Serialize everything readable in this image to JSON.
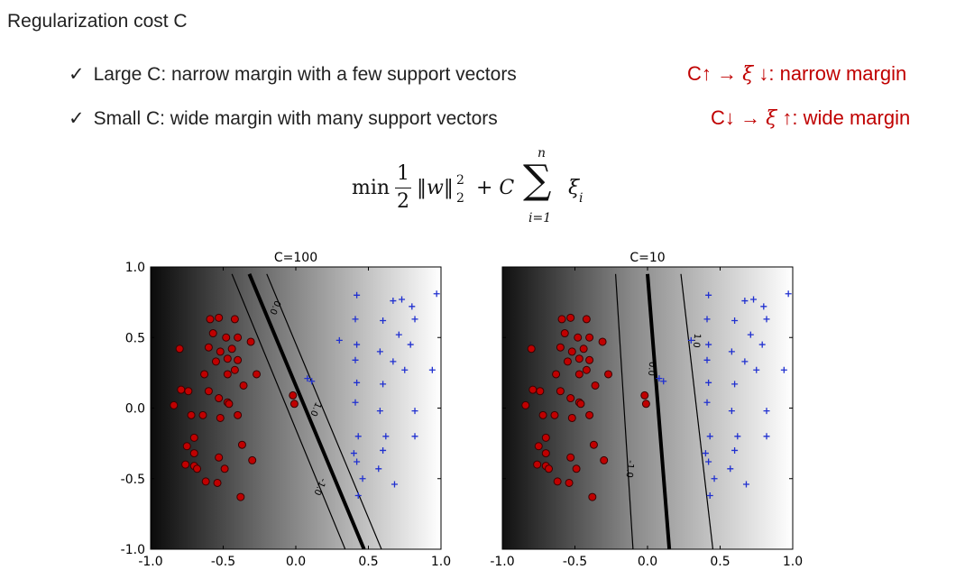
{
  "heading": "Regularization cost C",
  "bullets": [
    {
      "check": "✓",
      "text": "Large C: narrow margin with a few support vectors"
    },
    {
      "check": "✓",
      "text": "Small C: wide margin with many support vectors"
    }
  ],
  "notes": [
    {
      "a": "C↑ → ",
      "xi": "ξ",
      "b": " ↓: narrow margin"
    },
    {
      "a": "C↓ → ",
      "xi": "ξ",
      "b": " ↑: wide margin"
    }
  ],
  "formula": {
    "min": "min",
    "num": "1",
    "den": "2",
    "norm": "‖w‖",
    "sub": "2",
    "sup": "2",
    "plus": "+ C",
    "sum": "∑",
    "upper": "n",
    "lower": "i=1",
    "xi": "ξ",
    "xi_sub": "i"
  },
  "chart_data": [
    {
      "type": "scatter",
      "title": "C=100",
      "xlim": [
        -1.0,
        1.0
      ],
      "ylim": [
        -1.0,
        1.0
      ],
      "xticks": [
        "-1.0",
        "-0.5",
        "0.0",
        "0.5",
        "1.0"
      ],
      "yticks": [
        "-1.0",
        "-0.5",
        "0.0",
        "0.5",
        "1.0"
      ],
      "contour_labels": [
        "0.0",
        "1.0",
        "-1.0"
      ],
      "boundary": [
        [
          -0.32,
          0.95
        ],
        [
          0.47,
          -1.0
        ]
      ],
      "margins": [
        [
          [
            -0.2,
            0.95
          ],
          [
            0.59,
            -1.0
          ]
        ],
        [
          [
            -0.44,
            0.95
          ],
          [
            0.34,
            -1.0
          ]
        ]
      ],
      "series": [
        {
          "marker": "circle",
          "color": "#c00000",
          "points": [
            [
              -0.59,
              0.63
            ],
            [
              -0.53,
              0.64
            ],
            [
              -0.42,
              0.63
            ],
            [
              -0.57,
              0.53
            ],
            [
              -0.48,
              0.5
            ],
            [
              -0.4,
              0.5
            ],
            [
              -0.8,
              0.42
            ],
            [
              -0.6,
              0.43
            ],
            [
              -0.52,
              0.4
            ],
            [
              -0.44,
              0.42
            ],
            [
              -0.31,
              0.47
            ],
            [
              -0.55,
              0.33
            ],
            [
              -0.47,
              0.35
            ],
            [
              -0.4,
              0.34
            ],
            [
              -0.63,
              0.24
            ],
            [
              -0.47,
              0.24
            ],
            [
              -0.42,
              0.27
            ],
            [
              -0.27,
              0.24
            ],
            [
              -0.36,
              0.16
            ],
            [
              -0.79,
              0.13
            ],
            [
              -0.74,
              0.12
            ],
            [
              -0.6,
              0.12
            ],
            [
              -0.53,
              0.07
            ],
            [
              -0.47,
              0.04
            ],
            [
              -0.46,
              0.03
            ],
            [
              -0.84,
              0.02
            ],
            [
              -0.72,
              -0.05
            ],
            [
              -0.64,
              -0.05
            ],
            [
              -0.52,
              -0.07
            ],
            [
              -0.4,
              -0.05
            ],
            [
              -0.7,
              -0.21
            ],
            [
              -0.75,
              -0.27
            ],
            [
              -0.37,
              -0.26
            ],
            [
              -0.7,
              -0.32
            ],
            [
              -0.53,
              -0.35
            ],
            [
              -0.3,
              -0.37
            ],
            [
              -0.76,
              -0.4
            ],
            [
              -0.7,
              -0.41
            ],
            [
              -0.68,
              -0.43
            ],
            [
              -0.49,
              -0.43
            ],
            [
              -0.62,
              -0.52
            ],
            [
              -0.54,
              -0.53
            ],
            [
              -0.38,
              -0.63
            ],
            [
              -0.02,
              0.09
            ],
            [
              -0.01,
              0.03
            ]
          ]
        },
        {
          "marker": "plus",
          "color": "#2030d0",
          "points": [
            [
              0.42,
              0.8
            ],
            [
              0.67,
              0.76
            ],
            [
              0.73,
              0.77
            ],
            [
              0.8,
              0.72
            ],
            [
              0.97,
              0.81
            ],
            [
              0.41,
              0.63
            ],
            [
              0.6,
              0.62
            ],
            [
              0.82,
              0.63
            ],
            [
              0.71,
              0.52
            ],
            [
              0.3,
              0.48
            ],
            [
              0.42,
              0.45
            ],
            [
              0.58,
              0.4
            ],
            [
              0.79,
              0.45
            ],
            [
              0.67,
              0.33
            ],
            [
              0.75,
              0.27
            ],
            [
              0.94,
              0.27
            ],
            [
              0.41,
              0.34
            ],
            [
              0.08,
              0.21
            ],
            [
              0.11,
              0.19
            ],
            [
              0.42,
              0.18
            ],
            [
              0.6,
              0.17
            ],
            [
              0.41,
              0.04
            ],
            [
              0.58,
              -0.02
            ],
            [
              0.82,
              -0.02
            ],
            [
              0.43,
              -0.2
            ],
            [
              0.62,
              -0.2
            ],
            [
              0.82,
              -0.2
            ],
            [
              0.4,
              -0.32
            ],
            [
              0.6,
              -0.3
            ],
            [
              0.42,
              -0.38
            ],
            [
              0.57,
              -0.43
            ],
            [
              0.46,
              -0.5
            ],
            [
              0.43,
              -0.62
            ],
            [
              0.68,
              -0.54
            ]
          ]
        }
      ]
    },
    {
      "type": "scatter",
      "title": "C=10",
      "xlim": [
        -1.0,
        1.0
      ],
      "ylim": [
        -1.0,
        1.0
      ],
      "xticks": [
        "-1.0",
        "-0.5",
        "0.0",
        "0.5",
        "1.0"
      ],
      "yticks": [
        "",
        "",
        "",
        "",
        ""
      ],
      "contour_labels": [
        "0.0",
        "1.0",
        "-1.0"
      ],
      "boundary": [
        [
          0.0,
          0.95
        ],
        [
          0.15,
          -1.0
        ]
      ],
      "margins": [
        [
          [
            0.23,
            0.95
          ],
          [
            0.45,
            -1.0
          ]
        ],
        [
          [
            -0.22,
            0.95
          ],
          [
            -0.1,
            -1.0
          ]
        ]
      ],
      "series": [
        {
          "marker": "circle",
          "color": "#c00000",
          "points": [
            [
              -0.59,
              0.63
            ],
            [
              -0.53,
              0.64
            ],
            [
              -0.42,
              0.63
            ],
            [
              -0.57,
              0.53
            ],
            [
              -0.48,
              0.5
            ],
            [
              -0.4,
              0.5
            ],
            [
              -0.8,
              0.42
            ],
            [
              -0.6,
              0.43
            ],
            [
              -0.52,
              0.4
            ],
            [
              -0.44,
              0.42
            ],
            [
              -0.31,
              0.47
            ],
            [
              -0.55,
              0.33
            ],
            [
              -0.47,
              0.35
            ],
            [
              -0.4,
              0.34
            ],
            [
              -0.63,
              0.24
            ],
            [
              -0.47,
              0.24
            ],
            [
              -0.42,
              0.27
            ],
            [
              -0.27,
              0.24
            ],
            [
              -0.36,
              0.16
            ],
            [
              -0.79,
              0.13
            ],
            [
              -0.74,
              0.12
            ],
            [
              -0.6,
              0.12
            ],
            [
              -0.53,
              0.07
            ],
            [
              -0.47,
              0.04
            ],
            [
              -0.46,
              0.03
            ],
            [
              -0.84,
              0.02
            ],
            [
              -0.72,
              -0.05
            ],
            [
              -0.64,
              -0.05
            ],
            [
              -0.52,
              -0.07
            ],
            [
              -0.4,
              -0.05
            ],
            [
              -0.7,
              -0.21
            ],
            [
              -0.75,
              -0.27
            ],
            [
              -0.37,
              -0.26
            ],
            [
              -0.7,
              -0.32
            ],
            [
              -0.53,
              -0.35
            ],
            [
              -0.3,
              -0.37
            ],
            [
              -0.76,
              -0.4
            ],
            [
              -0.7,
              -0.41
            ],
            [
              -0.68,
              -0.43
            ],
            [
              -0.49,
              -0.43
            ],
            [
              -0.62,
              -0.52
            ],
            [
              -0.54,
              -0.53
            ],
            [
              -0.38,
              -0.63
            ],
            [
              -0.02,
              0.09
            ],
            [
              -0.01,
              0.03
            ]
          ]
        },
        {
          "marker": "plus",
          "color": "#2030d0",
          "points": [
            [
              0.42,
              0.8
            ],
            [
              0.67,
              0.76
            ],
            [
              0.73,
              0.77
            ],
            [
              0.8,
              0.72
            ],
            [
              0.97,
              0.81
            ],
            [
              0.41,
              0.63
            ],
            [
              0.6,
              0.62
            ],
            [
              0.82,
              0.63
            ],
            [
              0.71,
              0.52
            ],
            [
              0.3,
              0.48
            ],
            [
              0.42,
              0.45
            ],
            [
              0.58,
              0.4
            ],
            [
              0.79,
              0.45
            ],
            [
              0.67,
              0.33
            ],
            [
              0.75,
              0.27
            ],
            [
              0.94,
              0.27
            ],
            [
              0.41,
              0.34
            ],
            [
              0.08,
              0.21
            ],
            [
              0.11,
              0.19
            ],
            [
              0.42,
              0.18
            ],
            [
              0.6,
              0.17
            ],
            [
              0.41,
              0.04
            ],
            [
              0.58,
              -0.02
            ],
            [
              0.82,
              -0.02
            ],
            [
              0.43,
              -0.2
            ],
            [
              0.62,
              -0.2
            ],
            [
              0.82,
              -0.2
            ],
            [
              0.4,
              -0.32
            ],
            [
              0.6,
              -0.3
            ],
            [
              0.42,
              -0.38
            ],
            [
              0.57,
              -0.43
            ],
            [
              0.46,
              -0.5
            ],
            [
              0.43,
              -0.62
            ],
            [
              0.68,
              -0.54
            ]
          ]
        }
      ]
    }
  ]
}
